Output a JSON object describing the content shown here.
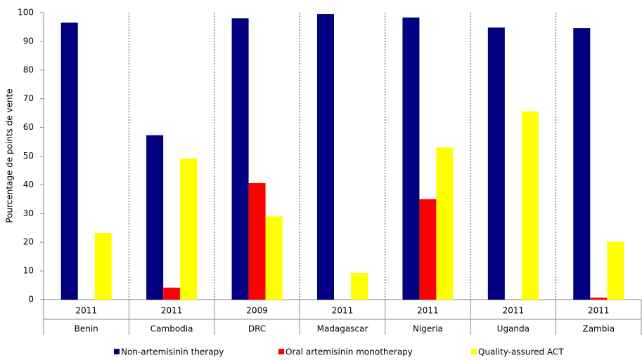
{
  "chart_data": {
    "type": "bar",
    "y_label": "Pourcentage de points de vente",
    "years": [
      "2011",
      "2011",
      "2009",
      "2011",
      "2011",
      "2011",
      "2011"
    ],
    "categories": [
      "Benin",
      "Cambodia",
      "DRC",
      "Madagascar",
      "Nigeria",
      "Uganda",
      "Zambia"
    ],
    "series": [
      {
        "name": "Non-artemisinin therapy",
        "color": "#000080",
        "values": [
          96.5,
          57.3,
          98,
          99.5,
          98.3,
          94.8,
          94.6
        ]
      },
      {
        "name": "Oral artemisinin monotherapy",
        "color": "#ff0000",
        "values": [
          0,
          4.2,
          40.6,
          0,
          35,
          0,
          0.7
        ]
      },
      {
        "name": "Quality-assured ACT",
        "color": "#ffff00",
        "values": [
          23.2,
          49.2,
          29,
          9.3,
          53,
          65.6,
          20.2
        ]
      }
    ],
    "ylim": [
      0,
      100
    ],
    "yticks": [
      0,
      10,
      20,
      30,
      40,
      50,
      60,
      70,
      80,
      90,
      100
    ]
  }
}
